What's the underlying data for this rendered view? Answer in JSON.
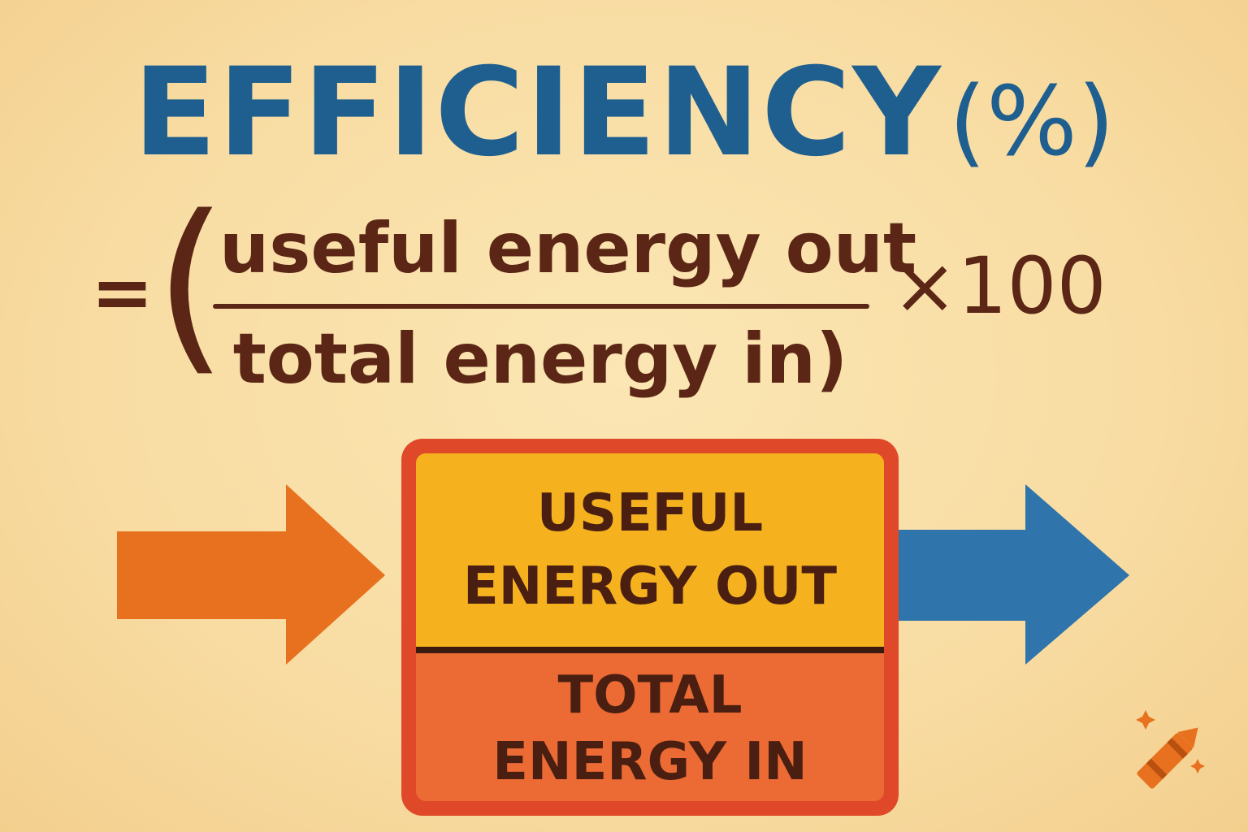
{
  "title": {
    "word": "EFFICIENCY",
    "percent": "(%)"
  },
  "formula": {
    "equals": "=",
    "open_paren": "(",
    "numerator": "useful energy out",
    "denominator": "total energy in)",
    "multiplier": "×100"
  },
  "box": {
    "top_line1": "USEFUL",
    "top_line2": "ENERGY OUT",
    "bottom_line1": "TOTAL",
    "bottom_line2": "ENERGY IN"
  },
  "colors": {
    "title_blue": "#1f5f8f",
    "text_brown": "#5c2616",
    "box_border": "#e0482a",
    "box_top": "#f5b21e",
    "box_bottom": "#ec6a33",
    "arrow_in": "#e8711f",
    "arrow_out": "#2f74aa"
  },
  "icons": {
    "input_arrow": "arrow-right-icon",
    "output_arrow": "arrow-right-icon",
    "logo": "crayon-icon"
  }
}
